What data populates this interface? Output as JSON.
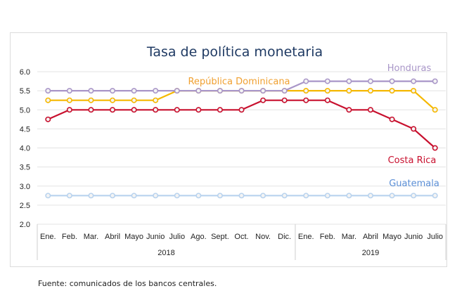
{
  "chart_data": {
    "type": "line",
    "title": "Tasa de política monetaria",
    "xlabel": "",
    "ylabel": "",
    "ylim": [
      2.0,
      6.0
    ],
    "yticks": [
      "2.0",
      "2.5",
      "3.0",
      "3.5",
      "4.0",
      "4.5",
      "5.0",
      "5.5",
      "6.0"
    ],
    "grid": true,
    "categories": [
      "Ene.",
      "Feb.",
      "Mar.",
      "Abril",
      "Mayo",
      "Junio",
      "Julio",
      "Ago.",
      "Sept.",
      "Oct.",
      "Nov.",
      "Dic.",
      "Ene.",
      "Feb.",
      "Mar.",
      "Abril",
      "Mayo",
      "Junio",
      "Julio"
    ],
    "year_groups": [
      {
        "label": "2018",
        "start": 0,
        "end": 11
      },
      {
        "label": "2019",
        "start": 12,
        "end": 18
      }
    ],
    "series": [
      {
        "name": "Honduras",
        "color": "#a996c8",
        "values": [
          5.5,
          5.5,
          5.5,
          5.5,
          5.5,
          5.5,
          5.5,
          5.5,
          5.5,
          5.5,
          5.5,
          5.5,
          5.75,
          5.75,
          5.75,
          5.75,
          5.75,
          5.75,
          5.75
        ]
      },
      {
        "name": "República Dominicana",
        "color": "#f5b800",
        "values": [
          5.25,
          5.25,
          5.25,
          5.25,
          5.25,
          5.25,
          5.5,
          5.5,
          5.5,
          5.5,
          5.5,
          5.5,
          5.5,
          5.5,
          5.5,
          5.5,
          5.5,
          5.5,
          5.0
        ]
      },
      {
        "name": "Costa Rica",
        "color": "#c8102e",
        "values": [
          4.75,
          5.0,
          5.0,
          5.0,
          5.0,
          5.0,
          5.0,
          5.0,
          5.0,
          5.0,
          5.25,
          5.25,
          5.25,
          5.25,
          5.0,
          5.0,
          4.75,
          4.5,
          4.0
        ]
      },
      {
        "name": "Guatemala",
        "color": "#b9d3ee",
        "values": [
          2.75,
          2.75,
          2.75,
          2.75,
          2.75,
          2.75,
          2.75,
          2.75,
          2.75,
          2.75,
          2.75,
          2.75,
          2.75,
          2.75,
          2.75,
          2.75,
          2.75,
          2.75,
          2.75
        ]
      }
    ],
    "series_label_colors": {
      "Honduras": "#a996c8",
      "República Dominicana": "#f0a030",
      "Costa Rica": "#c8102e",
      "Guatemala": "#5b8fd6"
    }
  },
  "source": "Fuente: comunicados de los bancos centrales."
}
